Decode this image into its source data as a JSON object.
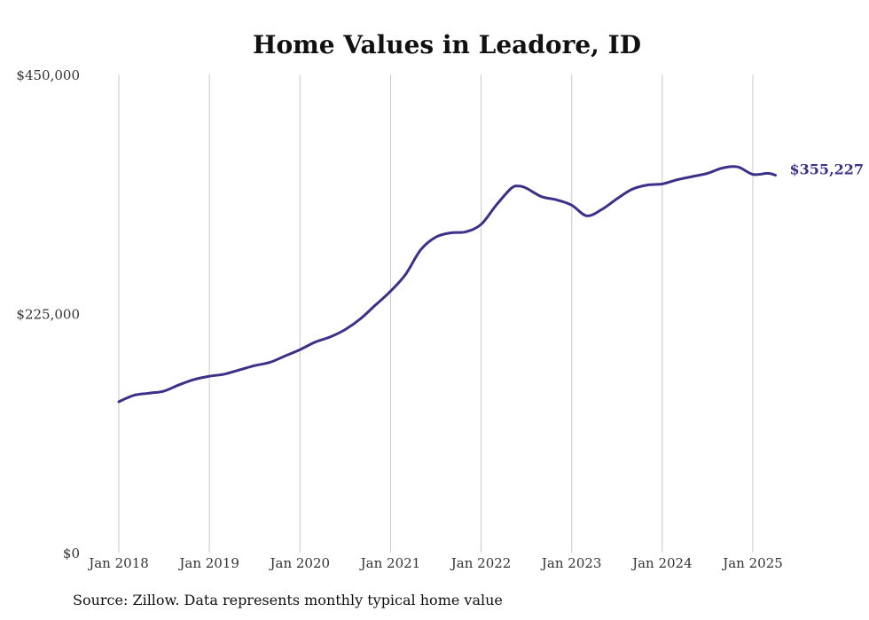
{
  "chart_data": {
    "type": "line",
    "title": "Home Values in Leadore, ID",
    "xlabel": "",
    "ylabel": "",
    "ylim": [
      0,
      450000
    ],
    "yticks": [
      0,
      225000,
      450000
    ],
    "ytick_labels": [
      "$0",
      "$225,000",
      "$450,000"
    ],
    "xticks": [
      "2018-01",
      "2019-01",
      "2020-01",
      "2021-01",
      "2022-01",
      "2023-01",
      "2024-01",
      "2025-01"
    ],
    "xtick_labels": [
      "Jan 2018",
      "Jan 2019",
      "Jan 2020",
      "Jan 2021",
      "Jan 2022",
      "Jan 2023",
      "Jan 2024",
      "Jan 2025"
    ],
    "grid": "vertical",
    "colors": {
      "line": "#3b3189"
    },
    "end_label": "$355,227",
    "series": [
      {
        "x": [
          "2018-01",
          "2018-03",
          "2018-05",
          "2018-07",
          "2018-09",
          "2018-11",
          "2019-01",
          "2019-03",
          "2019-05",
          "2019-07",
          "2019-09",
          "2019-11",
          "2020-01",
          "2020-03",
          "2020-05",
          "2020-07",
          "2020-09",
          "2020-11",
          "2021-01",
          "2021-03",
          "2021-05",
          "2021-07",
          "2021-09",
          "2021-11",
          "2022-01",
          "2022-03",
          "2022-05",
          "2022-06",
          "2022-07",
          "2022-09",
          "2022-11",
          "2023-01",
          "2023-03",
          "2023-05",
          "2023-07",
          "2023-09",
          "2023-11",
          "2024-01",
          "2024-03",
          "2024-05",
          "2024-07",
          "2024-09",
          "2024-11",
          "2025-01",
          "2025-03",
          "2025-04"
        ],
        "values": [
          142000,
          148000,
          150000,
          152000,
          158000,
          163000,
          166000,
          168000,
          172000,
          176000,
          179000,
          185000,
          191000,
          198000,
          203000,
          210000,
          220000,
          233000,
          246000,
          262000,
          285000,
          297000,
          301000,
          302000,
          309000,
          327000,
          343000,
          345000,
          343000,
          335000,
          332000,
          327000,
          317000,
          323000,
          333000,
          342000,
          346000,
          347000,
          351000,
          354000,
          357000,
          362000,
          363000,
          356000,
          357000,
          355227
        ]
      }
    ]
  },
  "source_note": "Source: Zillow. Data represents monthly typical home value"
}
